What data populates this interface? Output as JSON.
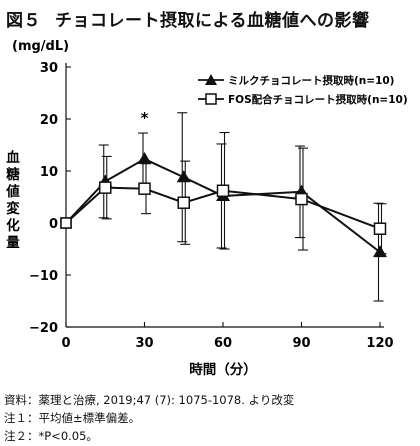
{
  "figure": {
    "number": "図５",
    "title": "チョコレート摂取による血糖値への影響"
  },
  "chart_data": {
    "type": "line",
    "ylabel_unit": "(mg/dL)",
    "ylabel": "血糖値変化量",
    "xlabel": "時間（分）",
    "xlim": [
      0,
      120
    ],
    "ylim": [
      -20,
      30
    ],
    "xticks": [
      0,
      30,
      60,
      90,
      120
    ],
    "yticks": [
      -20,
      -10,
      0,
      10,
      20,
      30
    ],
    "legend_position": "top-right",
    "significance_marker": {
      "text": "*",
      "x": 30
    },
    "series": [
      {
        "name": "ミルクチョコレート摂取時(n=10)",
        "marker": "filled-triangle",
        "color": "#111111",
        "x": [
          0,
          15,
          30,
          45,
          60,
          90,
          120
        ],
        "y": [
          0,
          8,
          12.3,
          8.8,
          5.2,
          6.0,
          -5.6
        ],
        "err": [
          0,
          7.0,
          5.0,
          12.4,
          10.0,
          8.8,
          9.4
        ]
      },
      {
        "name": "FOS配合チョコレート摂取時(n=10)",
        "marker": "open-square",
        "color": "#111111",
        "x": [
          0,
          15,
          30,
          45,
          60,
          90,
          120
        ],
        "y": [
          0,
          6.8,
          6.6,
          3.9,
          6.2,
          4.6,
          -1.1
        ],
        "err": [
          0,
          6.0,
          4.8,
          8.0,
          11.2,
          9.8,
          4.8
        ]
      }
    ]
  },
  "footnotes": [
    "資料：薬理と治療, 2019;47 (7): 1075-1078. より改変",
    "注１：平均値±標準偏差。",
    "注２：*P<0.05。"
  ]
}
